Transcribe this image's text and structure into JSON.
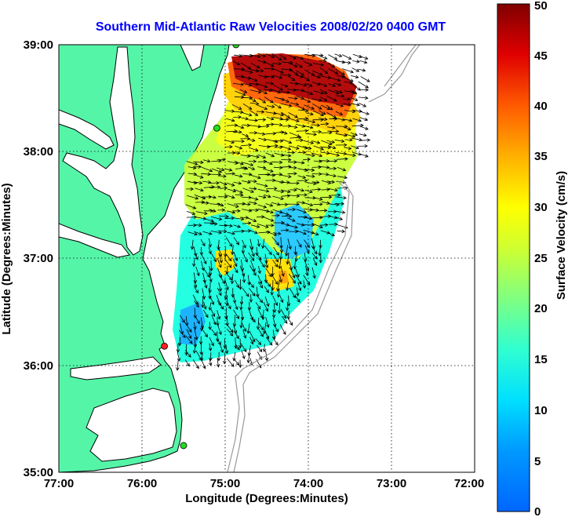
{
  "title": "Southern Mid-Atlantic Raw Velocities 2008/02/20 0400 GMT",
  "title_color": "#0000ff",
  "xlabel": "Longitude (Degrees:Minutes)",
  "ylabel": "Latitude (Degrees:Minutes)",
  "x_ticks": [
    "77:00",
    "76:00",
    "75:00",
    "74:00",
    "73:00",
    "72:00"
  ],
  "y_ticks": [
    "39:00",
    "38:00",
    "37:00",
    "36:00",
    "35:00"
  ],
  "colorbar": {
    "label": "Surface Velocity (cm/s)",
    "ticks": [
      "0",
      "5",
      "10",
      "15",
      "20",
      "25",
      "30",
      "35",
      "40",
      "45",
      "50"
    ],
    "range": [
      0,
      50
    ],
    "colormap": "jet"
  },
  "land_color": "#55f5a8",
  "site_markers": [
    {
      "status": "green",
      "lon": -74.87,
      "lat": 39.0
    },
    {
      "status": "green",
      "lon": -75.1,
      "lat": 38.22
    },
    {
      "status": "red",
      "lon": -75.73,
      "lat": 36.18
    },
    {
      "status": "green",
      "lon": -75.5,
      "lat": 35.25
    }
  ]
}
